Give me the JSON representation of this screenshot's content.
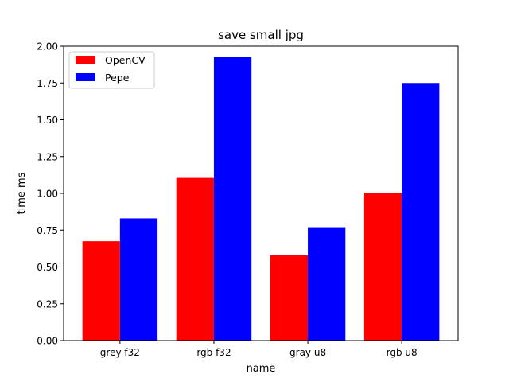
{
  "chart_data": {
    "type": "bar",
    "title": "save small jpg",
    "xlabel": "name",
    "ylabel": "time ms",
    "categories": [
      "grey f32",
      "rgb f32",
      "gray u8",
      "rgb u8"
    ],
    "series": [
      {
        "name": "OpenCV",
        "color": "#ff0000",
        "values": [
          0.675,
          1.105,
          0.58,
          1.005
        ]
      },
      {
        "name": "Pepe",
        "color": "#0000ff",
        "values": [
          0.83,
          1.925,
          0.77,
          1.75
        ]
      }
    ],
    "ylim": [
      0,
      2.0
    ],
    "yticks": [
      "0.00",
      "0.25",
      "0.50",
      "0.75",
      "1.00",
      "1.25",
      "1.50",
      "1.75",
      "2.00"
    ],
    "grid": false,
    "legend_position": "top-left"
  }
}
